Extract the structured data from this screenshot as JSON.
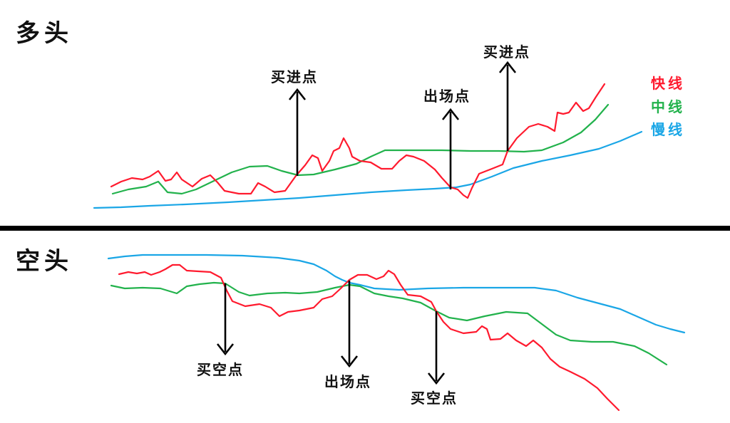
{
  "bull": {
    "title": "多头",
    "buy_label_1": "买进点",
    "exit_label": "出场点",
    "buy_label_2": "买进点",
    "legend": {
      "fast": "快线",
      "mid": "中线",
      "slow": "慢线"
    }
  },
  "bear": {
    "title": "空头",
    "short_label_1": "买空点",
    "exit_label": "出场点",
    "short_label_2": "买空点"
  },
  "colors": {
    "fast": "#ff1a2e",
    "mid": "#22b24c",
    "slow": "#1aa6e6",
    "divider": "#000000"
  }
}
